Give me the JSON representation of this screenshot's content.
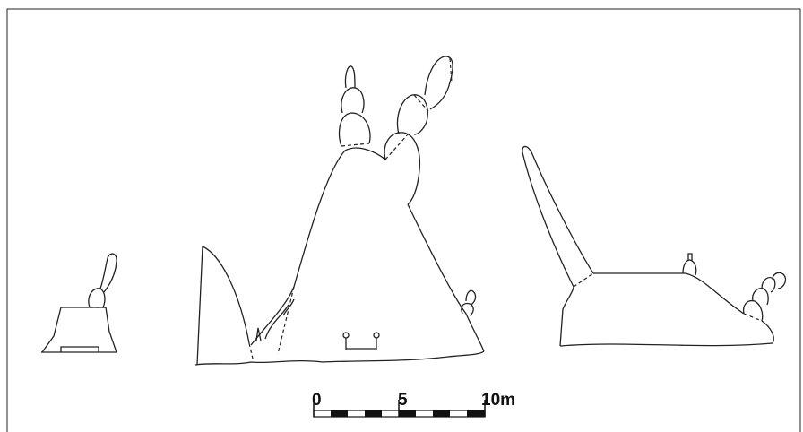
{
  "scale_bar": {
    "labels": [
      "0",
      "5",
      "10m"
    ]
  }
}
